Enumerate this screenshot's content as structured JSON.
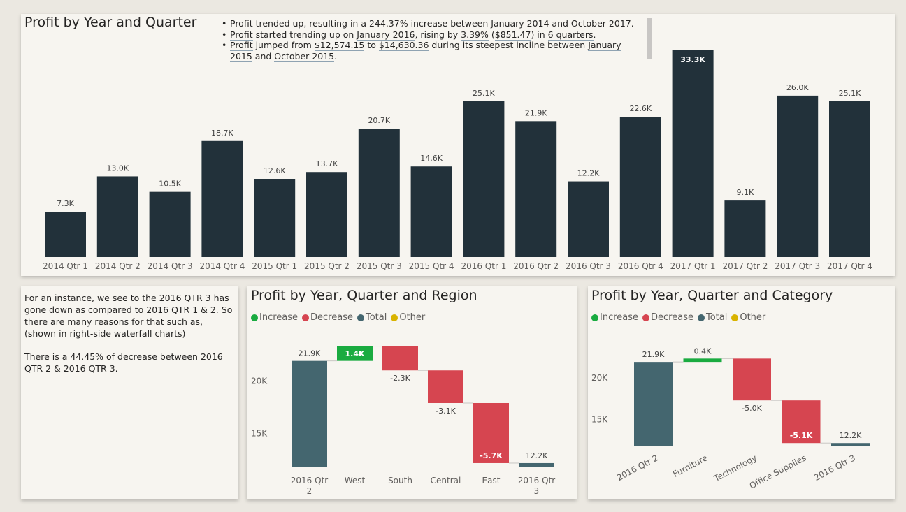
{
  "colors": {
    "bar": "#22313a",
    "increase": "#1aab40",
    "decrease": "#d64550",
    "total": "#44666f",
    "other": "#d9b300"
  },
  "top": {
    "title": "Profit by Year and Quarter",
    "narrative": [
      [
        "Profit trended up, resulting in a ",
        {
          "u": "244.37%"
        },
        " increase between ",
        {
          "u": "January 2014"
        },
        " and ",
        {
          "u": "October 2017"
        },
        "."
      ],
      [
        {
          "u": "Profit"
        },
        " started trending up on ",
        {
          "u": "January 2016"
        },
        ", rising by ",
        {
          "u": "3.39%"
        },
        " (",
        {
          "u": "$851.47"
        },
        ") in ",
        {
          "u": "6 quarters"
        },
        "."
      ],
      [
        {
          "u": "Profit"
        },
        " jumped from ",
        {
          "u": "$12,574.15"
        },
        " to ",
        {
          "u": "$14,630.36"
        },
        " during its steepest incline between ",
        {
          "u": "January 2015"
        },
        " and ",
        {
          "u": "October 2015"
        },
        "."
      ]
    ]
  },
  "side_text": {
    "paragraphs": [
      "For an instance, we see to the 2016 QTR 3 has gone down as compared to 2016 QTR 1 & 2. So there are many reasons for that such as, (shown in right-side waterfall charts)",
      "There is a 44.45% of decrease between 2016 QTR 2 & 2016 QTR 3."
    ]
  },
  "region": {
    "title": "Profit by Year, Quarter and Region",
    "legend": [
      "Increase",
      "Decrease",
      "Total",
      "Other"
    ]
  },
  "category": {
    "title": "Profit by Year, Quarter and Category",
    "legend": [
      "Increase",
      "Decrease",
      "Total",
      "Other"
    ]
  },
  "chart_data": [
    {
      "type": "bar",
      "title": "Profit by Year and Quarter",
      "categories": [
        "2014 Qtr 1",
        "2014 Qtr 2",
        "2014 Qtr 3",
        "2014 Qtr 4",
        "2015 Qtr 1",
        "2015 Qtr 2",
        "2015 Qtr 3",
        "2015 Qtr 4",
        "2016 Qtr 1",
        "2016 Qtr 2",
        "2016 Qtr 3",
        "2016 Qtr 4",
        "2017 Qtr 1",
        "2017 Qtr 2",
        "2017 Qtr 3",
        "2017 Qtr 4"
      ],
      "values": [
        7.3,
        13.0,
        10.5,
        18.7,
        12.6,
        13.7,
        20.7,
        14.6,
        25.1,
        21.9,
        12.2,
        22.6,
        33.3,
        9.1,
        26.0,
        25.1
      ],
      "labels": [
        "7.3K",
        "13.0K",
        "10.5K",
        "18.7K",
        "12.6K",
        "13.7K",
        "20.7K",
        "14.6K",
        "25.1K",
        "21.9K",
        "12.2K",
        "22.6K",
        "33.3K",
        "9.1K",
        "26.0K",
        "25.1K"
      ],
      "unit": "thousands",
      "ylim": [
        0,
        33.3
      ],
      "grid": false
    },
    {
      "type": "waterfall",
      "title": "Profit by Year, Quarter and Region",
      "categories": [
        "2016 Qtr 2",
        "West",
        "South",
        "Central",
        "East",
        "2016 Qtr 3"
      ],
      "kinds": [
        "total",
        "increase",
        "decrease",
        "decrease",
        "decrease",
        "total"
      ],
      "values": [
        21.9,
        1.4,
        -2.3,
        -3.1,
        -5.7,
        12.2
      ],
      "labels": [
        "21.9K",
        "1.4K",
        "-2.3K",
        "-3.1K",
        "-5.7K",
        "12.2K"
      ],
      "yticks": [
        "15K",
        "20K"
      ],
      "ytick_values": [
        15,
        20
      ],
      "ylim": [
        11.8,
        23.8
      ]
    },
    {
      "type": "waterfall",
      "title": "Profit by Year, Quarter and Category",
      "categories": [
        "2016 Qtr 2",
        "Furniture",
        "Technology",
        "Office Supplies",
        "2016 Qtr 3"
      ],
      "kinds": [
        "total",
        "increase",
        "decrease",
        "decrease",
        "total"
      ],
      "values": [
        21.9,
        0.4,
        -5.0,
        -5.1,
        12.2
      ],
      "labels": [
        "21.9K",
        "0.4K",
        "-5.0K",
        "-5.1K",
        "12.2K"
      ],
      "yticks": [
        "15K",
        "20K"
      ],
      "ytick_values": [
        15,
        20
      ],
      "ylim": [
        11.8,
        24.0
      ]
    }
  ]
}
